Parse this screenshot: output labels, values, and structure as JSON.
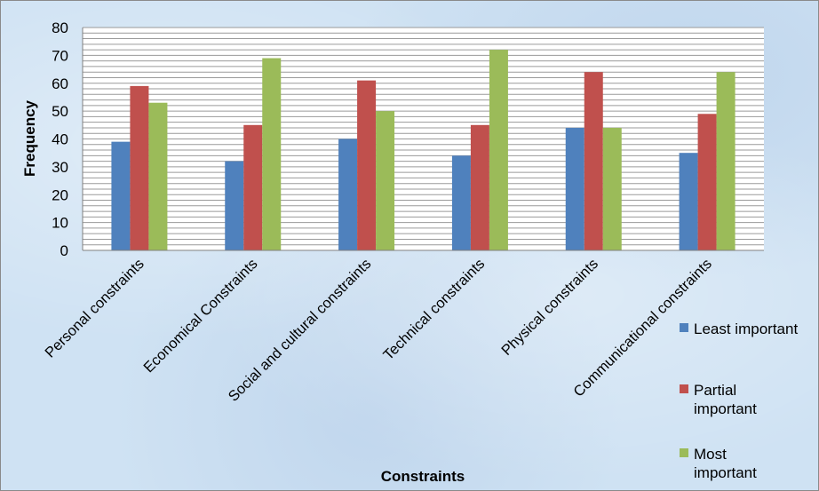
{
  "chart_data": {
    "type": "bar",
    "title": "",
    "xlabel": "Constraints",
    "ylabel": "Frequency",
    "ylim": [
      0,
      80
    ],
    "yticks": [
      0,
      10,
      20,
      30,
      40,
      50,
      60,
      70,
      80
    ],
    "grid": "horizontal, every 2 units",
    "legend_position": "right",
    "categories": [
      "Personal constraints",
      "Economical Constraints",
      "Social and cultural constraints",
      "Technical constraints",
      "Physical constraints",
      "Communicational constraints"
    ],
    "series": [
      {
        "name": "Least important",
        "color": "#4f81bd",
        "values": [
          39,
          32,
          40,
          34,
          44,
          35
        ]
      },
      {
        "name": "Partial important",
        "color": "#c0504d",
        "values": [
          59,
          45,
          61,
          45,
          64,
          49
        ]
      },
      {
        "name": "Most important",
        "color": "#9bbb59",
        "values": [
          53,
          69,
          50,
          72,
          44,
          64
        ]
      }
    ]
  }
}
